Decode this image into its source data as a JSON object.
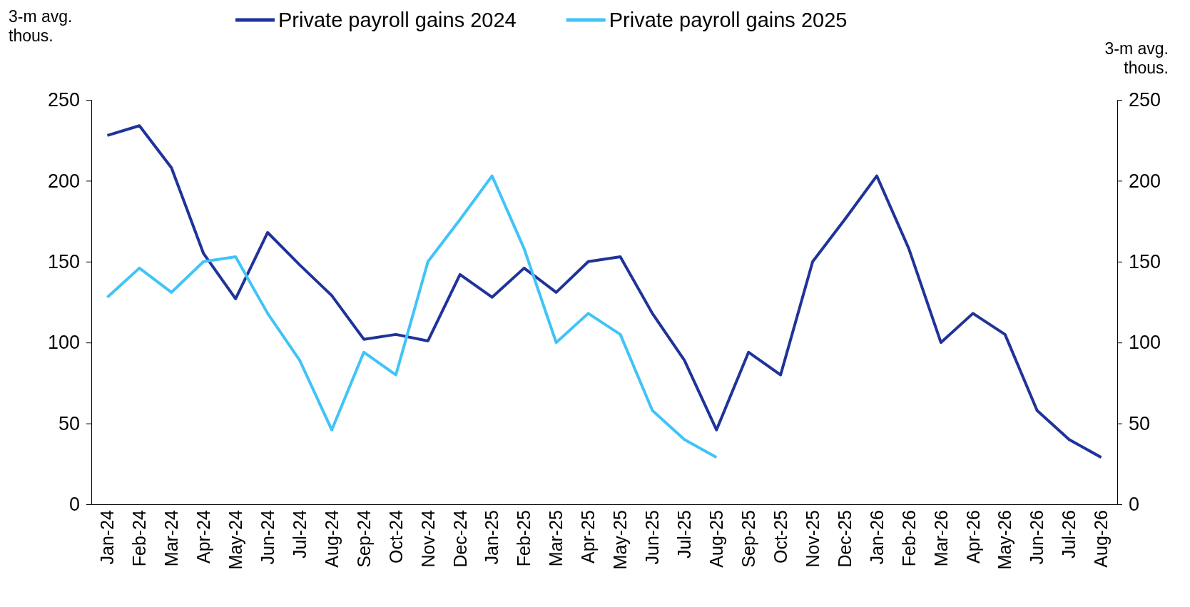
{
  "chart_data": {
    "type": "line",
    "ylabel": "3-m avg. thous.",
    "y2label": "3-m avg. thous.",
    "categories": [
      "Jan-24",
      "Feb-24",
      "Mar-24",
      "Apr-24",
      "May-24",
      "Jun-24",
      "Jul-24",
      "Aug-24",
      "Sep-24",
      "Oct-24",
      "Nov-24",
      "Dec-24",
      "Jan-25",
      "Feb-25",
      "Mar-25",
      "Apr-25",
      "May-25",
      "Jun-25",
      "Jul-25",
      "Aug-25",
      "Sep-25",
      "Oct-25",
      "Nov-25",
      "Dec-25",
      "Jan-26",
      "Feb-26",
      "Mar-26",
      "Apr-26",
      "May-26",
      "Jun-26",
      "Jul-26",
      "Aug-26"
    ],
    "series": [
      {
        "name": "Private payroll gains 2024",
        "color": "#1f3399",
        "values": [
          228,
          234,
          208,
          155,
          127,
          168,
          148,
          129,
          102,
          105,
          101,
          142,
          128,
          146,
          131,
          150,
          153,
          118,
          89,
          46,
          94,
          80,
          150,
          176,
          203,
          158,
          100,
          118,
          105,
          58,
          40,
          29
        ]
      },
      {
        "name": "Private payroll gains 2025",
        "color": "#40c4f7",
        "values": [
          128,
          146,
          131,
          150,
          153,
          118,
          89,
          46,
          94,
          80,
          150,
          176,
          203,
          158,
          100,
          118,
          105,
          58,
          40,
          29,
          null,
          null,
          null,
          null,
          null,
          null,
          null,
          null,
          null,
          null,
          null,
          null
        ]
      }
    ],
    "ylim": [
      0,
      250
    ],
    "yticks": [
      0,
      50,
      100,
      150,
      200,
      250
    ],
    "y2lim": [
      0,
      250
    ],
    "y2ticks": [
      0,
      50,
      100,
      150,
      200,
      250
    ],
    "grid": false,
    "legend": "top",
    "marker": "none",
    "line_style": "solid"
  }
}
